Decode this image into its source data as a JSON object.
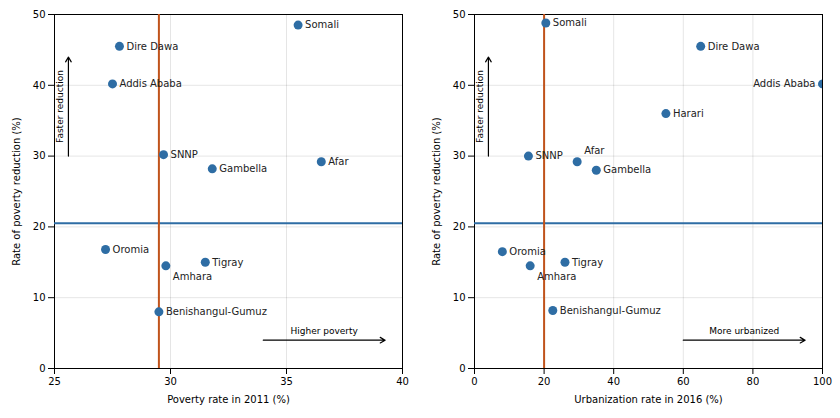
{
  "chart_data": [
    {
      "type": "scatter",
      "xlabel": "Poverty rate in 2011 (%)",
      "ylabel": "Rate of poverty reduction (%)",
      "xlim": [
        25,
        40
      ],
      "xticks": [
        25,
        30,
        35,
        40
      ],
      "ylim": [
        0,
        50
      ],
      "yticks": [
        0,
        10,
        20,
        30,
        40,
        50
      ],
      "grid": true,
      "color": "#2E6DA4",
      "labels": [
        "Somali",
        "Dire Dawa",
        "Addis Ababa",
        "SNNP",
        "Gambella",
        "Afar",
        "Oromia",
        "Tigray",
        "Amhara",
        "Benishangul-Gumuz"
      ],
      "x": [
        35.5,
        27.8,
        27.5,
        29.7,
        31.8,
        36.5,
        27.2,
        31.5,
        29.8,
        29.5
      ],
      "values": [
        48.5,
        45.5,
        40.2,
        30.2,
        28.2,
        29.2,
        16.8,
        15.0,
        14.5,
        8.0
      ],
      "hline": {
        "value": 20.5,
        "color": "#2E6DA4"
      },
      "vline": {
        "value": 29.5,
        "color": "#C0531B"
      },
      "annotations": [
        "Faster reduction",
        "Higher poverty"
      ]
    },
    {
      "type": "scatter",
      "xlabel": "Urbanization rate in 2016 (%)",
      "ylabel": "Rate of poverty reduction (%)",
      "xlim": [
        0,
        100
      ],
      "xticks": [
        0,
        20,
        40,
        60,
        80,
        100
      ],
      "ylim": [
        0,
        50
      ],
      "yticks": [
        0,
        10,
        20,
        30,
        40,
        50
      ],
      "grid": true,
      "color": "#2E6DA4",
      "labels": [
        "Somali",
        "Dire Dawa",
        "Addis Ababa",
        "Harari",
        "Afar",
        "SNNP",
        "Gambella",
        "Oromia",
        "Tigray",
        "Amhara",
        "Benishangul-Gumuz"
      ],
      "x": [
        20.5,
        65.0,
        100.0,
        55.0,
        29.5,
        15.5,
        35.0,
        8.0,
        26.0,
        16.0,
        22.5
      ],
      "values": [
        48.8,
        45.5,
        40.2,
        36.0,
        29.2,
        30.0,
        28.0,
        16.5,
        15.0,
        14.5,
        8.2
      ],
      "hline": {
        "value": 20.5,
        "color": "#2E6DA4"
      },
      "vline": {
        "value": 20.0,
        "color": "#C0531B"
      },
      "annotations": [
        "Faster reduction",
        "More urbanized"
      ]
    }
  ]
}
